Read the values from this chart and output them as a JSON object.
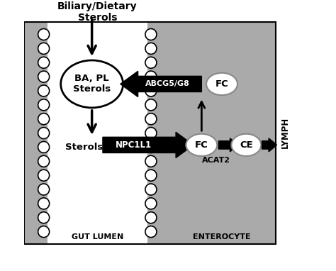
{
  "bg_color": "#ffffff",
  "sidebar_color": "#aaaaaa",
  "gut_lumen_color": "#ffffff",
  "enterocyte_color": "#aaaaaa",
  "lymph_label_color": "#000000",
  "black": "#000000",
  "white": "#ffffff",
  "label_gut": "GUT LUMEN",
  "label_entero": "ENTEROCYTE",
  "label_lymph": "LYMPH",
  "label_biliary": "Biliary/Dietary\nSterols",
  "label_ba": "BA, PL\nSterols",
  "label_sterols": "Sterols",
  "label_npc1l1": "NPC1L1",
  "label_abcg": "ABCG5/G8",
  "label_fc1": "FC",
  "label_fc2": "FC",
  "label_ce": "CE",
  "label_acat2": "ACAT2",
  "figsize": [
    4.74,
    3.82
  ],
  "dpi": 100
}
